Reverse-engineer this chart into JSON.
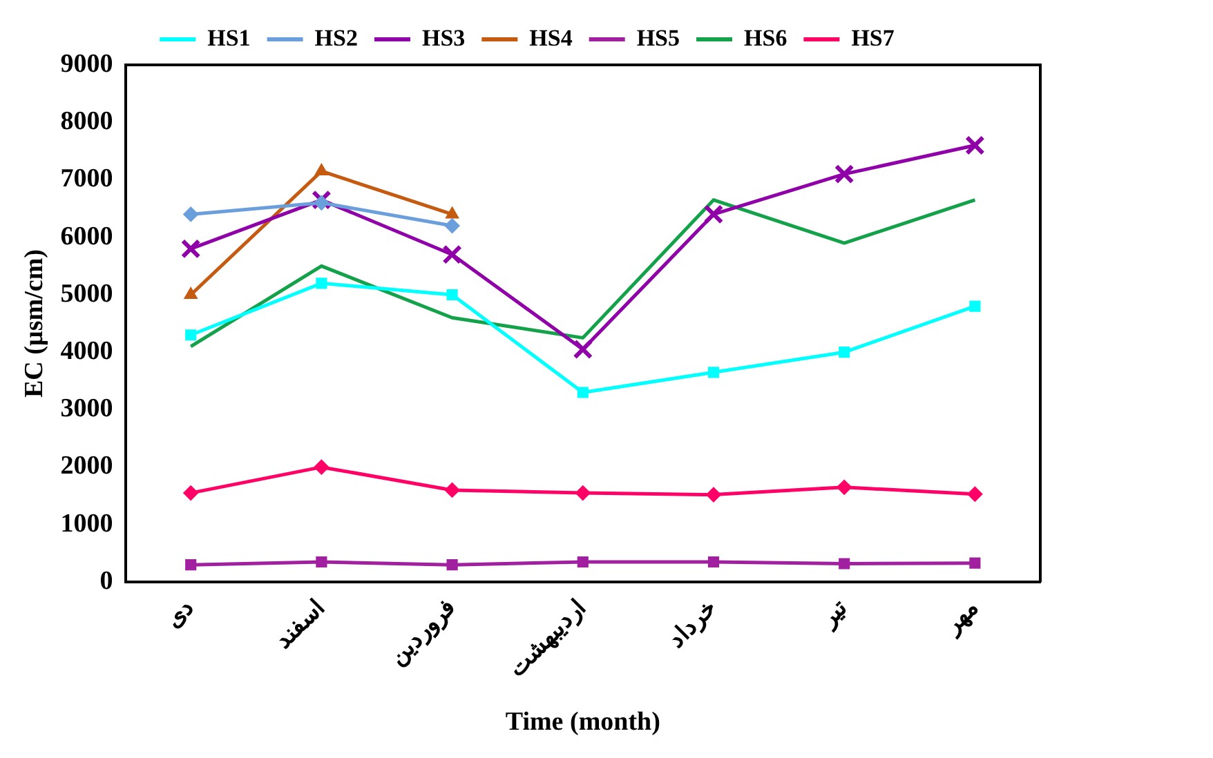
{
  "chart_data": {
    "type": "line",
    "xlabel": "Time (month)",
    "ylabel": "EC (µsm/cm)",
    "categories": [
      "دی",
      "اسفند",
      "فروردین",
      "اردیبهشت",
      "خرداد",
      "تیر",
      "مهر"
    ],
    "ylim": [
      0,
      9000
    ],
    "yticks": [
      0,
      1000,
      2000,
      3000,
      4000,
      5000,
      6000,
      7000,
      8000,
      9000
    ],
    "grid": false,
    "legend": "top",
    "series": [
      {
        "name": "HS1",
        "color": "#00ffff",
        "marker": "square",
        "values": [
          4300,
          5200,
          5000,
          3300,
          3650,
          4000,
          4800
        ]
      },
      {
        "name": "HS2",
        "color": "#6a9fdc",
        "marker": "diamond",
        "values": [
          6400,
          6600,
          6200,
          null,
          null,
          null,
          null
        ]
      },
      {
        "name": "HS3",
        "color": "#9000a8",
        "marker": "cross",
        "values": [
          5800,
          6650,
          5700,
          4050,
          6400,
          7100,
          7600
        ]
      },
      {
        "name": "HS4",
        "color": "#c55a11",
        "marker": "triangle",
        "values": [
          5000,
          7150,
          6400,
          null,
          null,
          null,
          null
        ]
      },
      {
        "name": "HS5",
        "color": "#a020a0",
        "marker": "square",
        "values": [
          300,
          350,
          300,
          350,
          350,
          320,
          330
        ]
      },
      {
        "name": "HS6",
        "color": "#13a14a",
        "marker": "none",
        "values": [
          4100,
          5500,
          4600,
          4250,
          6650,
          5900,
          6650
        ]
      },
      {
        "name": "HS7",
        "color": "#ff0066",
        "marker": "diamond",
        "values": [
          1550,
          2000,
          1600,
          1550,
          1520,
          1650,
          1530
        ]
      }
    ]
  }
}
